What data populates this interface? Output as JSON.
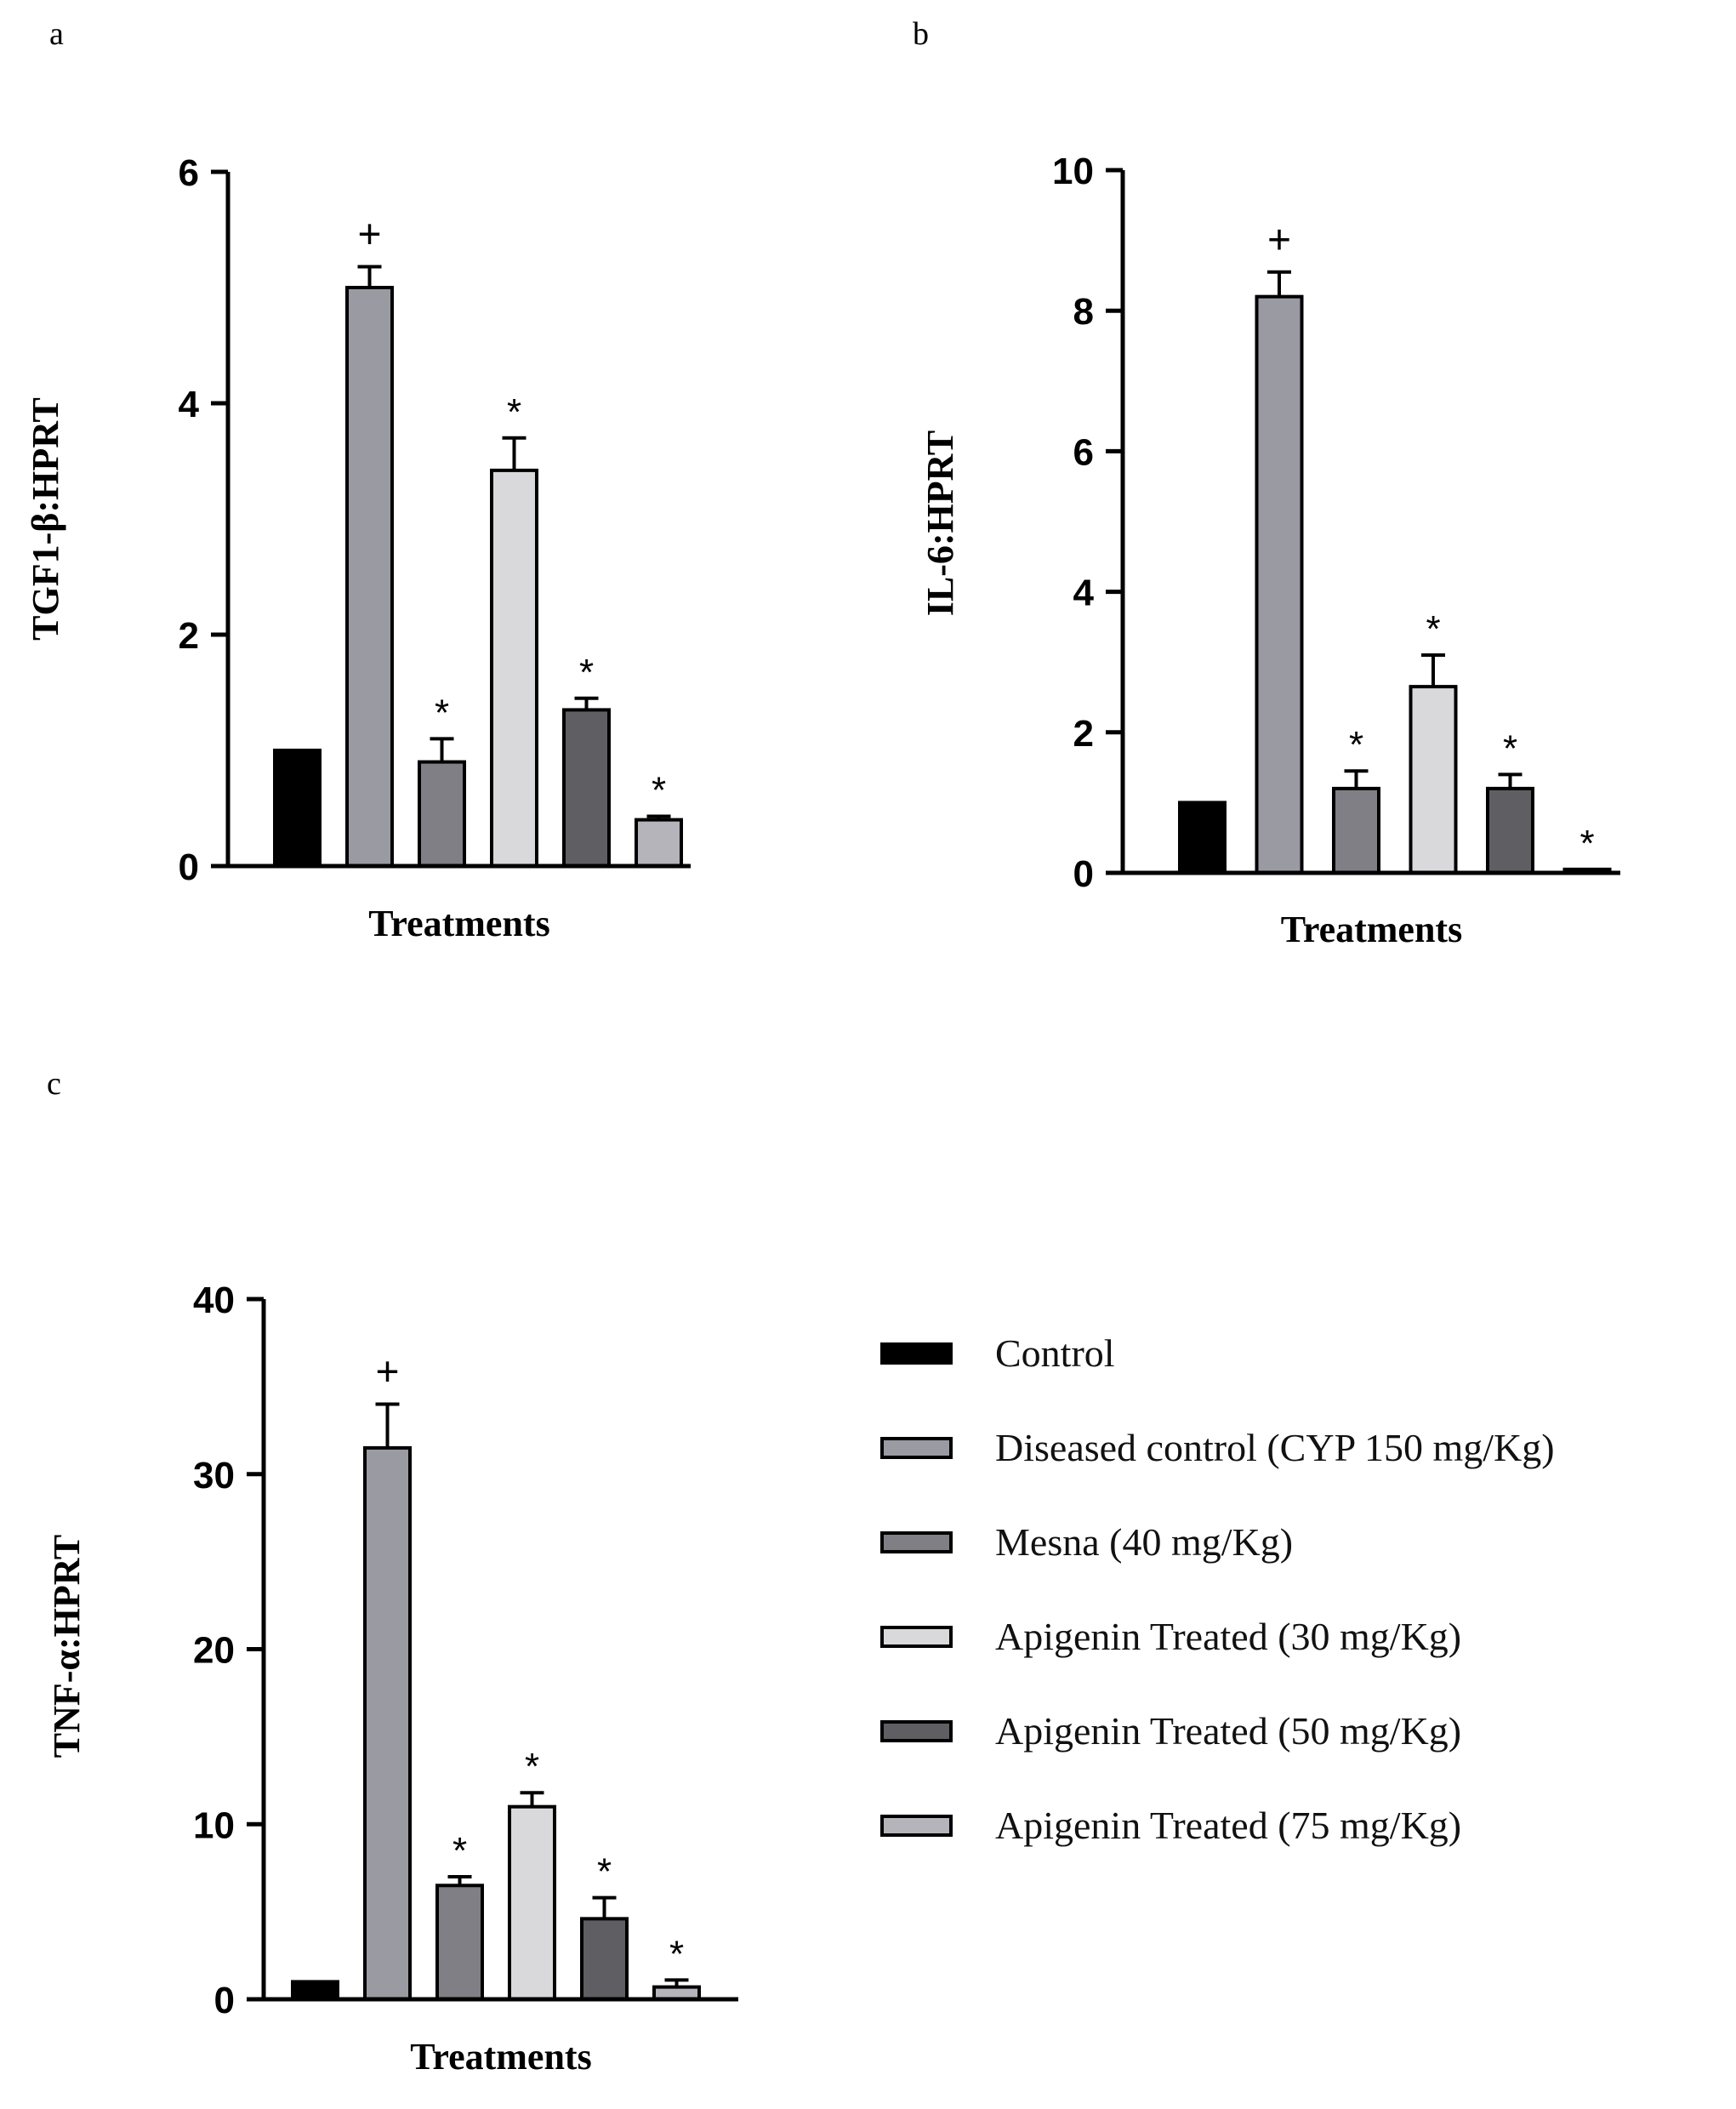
{
  "panels": {
    "a": "a",
    "b": "b",
    "c": "c"
  },
  "colors": [
    "#000000",
    "#9a9aa2",
    "#7f7f85",
    "#d9d9dc",
    "#5e5e63",
    "#b4b4ba"
  ],
  "chart_data": [
    {
      "id": "a",
      "type": "bar",
      "ylabel": "TGF1-β:HPRT",
      "xlabel": "Treatments",
      "ylim": [
        0,
        6
      ],
      "yticks": [
        0,
        2,
        4,
        6
      ],
      "categories": [
        "Control",
        "Diseased control (CYP 150 mg/Kg)",
        "Mesna (40 mg/Kg)",
        "Apigenin Treated (30 mg/Kg)",
        "Apigenin Treated (50 mg/Kg)",
        "Apigenin Treated (75 mg/Kg)"
      ],
      "values": [
        1.0,
        5.0,
        0.9,
        3.42,
        1.35,
        0.4
      ],
      "errors": [
        0,
        0.18,
        0.2,
        0.28,
        0.1,
        0.03
      ],
      "markers": [
        "",
        "+",
        "*",
        "*",
        "*",
        "*"
      ]
    },
    {
      "id": "b",
      "type": "bar",
      "ylabel": "IL-6:HPRT",
      "xlabel": "Treatments",
      "ylim": [
        0,
        10
      ],
      "yticks": [
        0,
        2,
        4,
        6,
        8,
        10
      ],
      "categories": [
        "Control",
        "Diseased control (CYP 150 mg/Kg)",
        "Mesna (40 mg/Kg)",
        "Apigenin Treated (30 mg/Kg)",
        "Apigenin Treated (50 mg/Kg)",
        "Apigenin Treated (75 mg/Kg)"
      ],
      "values": [
        1.0,
        8.2,
        1.2,
        2.65,
        1.2,
        0.05
      ],
      "errors": [
        0,
        0.35,
        0.25,
        0.45,
        0.2,
        0
      ],
      "markers": [
        "",
        "+",
        "*",
        "*",
        "*",
        "*"
      ]
    },
    {
      "id": "c",
      "type": "bar",
      "ylabel": "TNF-α:HPRT",
      "xlabel": "Treatments",
      "ylim": [
        0,
        40
      ],
      "yticks": [
        0,
        10,
        20,
        30,
        40
      ],
      "categories": [
        "Control",
        "Diseased control (CYP 150 mg/Kg)",
        "Mesna (40 mg/Kg)",
        "Apigenin Treated (30 mg/Kg)",
        "Apigenin Treated (50 mg/Kg)",
        "Apigenin Treated (75 mg/Kg)"
      ],
      "values": [
        1.0,
        31.5,
        6.5,
        11.0,
        4.6,
        0.7
      ],
      "errors": [
        0,
        2.5,
        0.5,
        0.8,
        1.2,
        0.4
      ],
      "markers": [
        "",
        "+",
        "*",
        "*",
        "*",
        "*"
      ]
    }
  ],
  "legend": [
    {
      "label": "Control"
    },
    {
      "label": "Diseased control (CYP 150 mg/Kg)"
    },
    {
      "label": "Mesna (40 mg/Kg)"
    },
    {
      "label": "Apigenin Treated (30 mg/Kg)"
    },
    {
      "label": "Apigenin Treated (50 mg/Kg)"
    },
    {
      "label": "Apigenin Treated (75 mg/Kg)"
    }
  ]
}
